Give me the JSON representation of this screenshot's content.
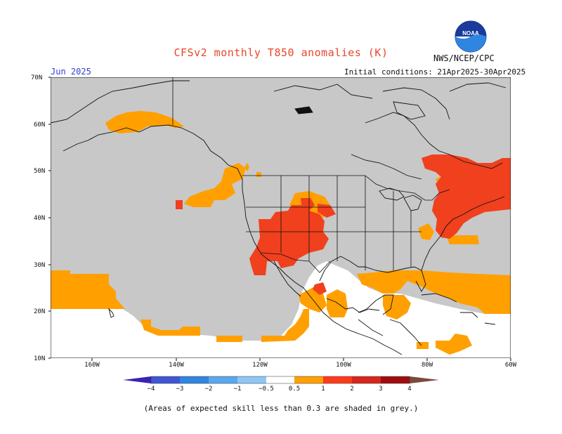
{
  "title": "CFSv2 monthly T850 anomalies (K)",
  "agency": "NWS/NCEP/CPC",
  "logo_text": "NOAA",
  "month_label": "Jun 2025",
  "initial_conditions": "Initial conditions: 21Apr2025-30Apr2025",
  "footnote": "(Areas of expected skill less than 0.3 are shaded in grey.)",
  "lat_ticks": [
    "70N",
    "60N",
    "50N",
    "40N",
    "30N",
    "20N",
    "10N"
  ],
  "lon_ticks": [
    "160W",
    "140W",
    "120W",
    "100W",
    "80W",
    "60W"
  ],
  "colorbar": {
    "labels": [
      "−4",
      "−3",
      "−2",
      "−1",
      "−0.5",
      "0.5",
      "1",
      "2",
      "3",
      "4"
    ],
    "colors": [
      "#3a22b8",
      "#3e55d4",
      "#2f86e0",
      "#5aa8ee",
      "#8ec6f5",
      "#ffffff",
      "#ffa000",
      "#ff3a1a",
      "#d8261a",
      "#a00d0d",
      "#c79a8c",
      "#7a4a3c"
    ]
  },
  "map_colors": {
    "grey_low_skill": "#c8c8c8",
    "anomaly_0_5_to_1": "#ffa000",
    "anomaly_1_to_2": "#f0401e"
  }
}
